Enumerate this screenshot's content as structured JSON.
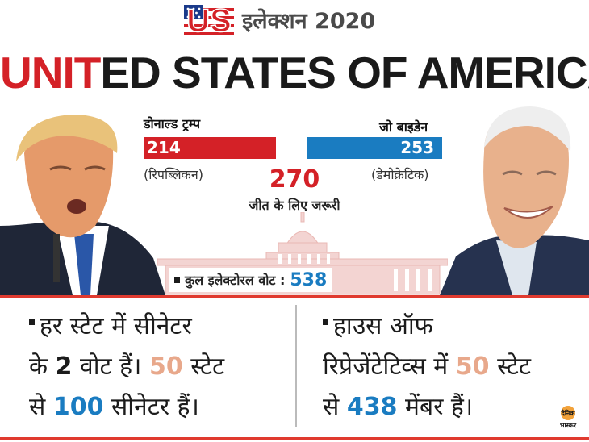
{
  "header": {
    "logo_text": "US",
    "title": "इलेक्शन 2020"
  },
  "main_title": {
    "part_red": "UNIT",
    "part_dark": "ED STATES OF AMERICA"
  },
  "candidates": {
    "republican": {
      "name": "डोनाल्ड ट्रम्प",
      "votes": "214",
      "party": "(रिपब्लिकन)"
    },
    "democrat": {
      "name": "जो बाइडेन",
      "votes": "253",
      "party": "(डेमोक्रेटिक)"
    }
  },
  "needed": {
    "value": "270",
    "label": "जीत के लिए जरूरी"
  },
  "total": {
    "label": "कुल इलेक्टोरल वोट :",
    "value": "538"
  },
  "notes": {
    "left": {
      "line1": "हर स्टेट में सीनेटर",
      "line2_a": "के",
      "line2_num1": "2",
      "line2_b": "वोट हैं।",
      "line2_num2": "50",
      "line2_c": "स्टेट",
      "line3_a": "से",
      "line3_num": "100",
      "line3_b": "सीनेटर हैं।"
    },
    "right": {
      "line1": "हाउस ऑफ",
      "line2_a": "रिप्रेजेंटेटिव्स में",
      "line2_num": "50",
      "line2_b": "स्टेट",
      "line3_a": "से",
      "line3_num": "438",
      "line3_b": "मेंबर हैं।"
    }
  },
  "brand": {
    "line1": "दैनिक",
    "line2": "भास्कर"
  },
  "colors": {
    "republican": "#d42127",
    "democrat": "#1a7cc1",
    "accent_orange": "#e8a88b",
    "rule": "#e03a2f"
  }
}
